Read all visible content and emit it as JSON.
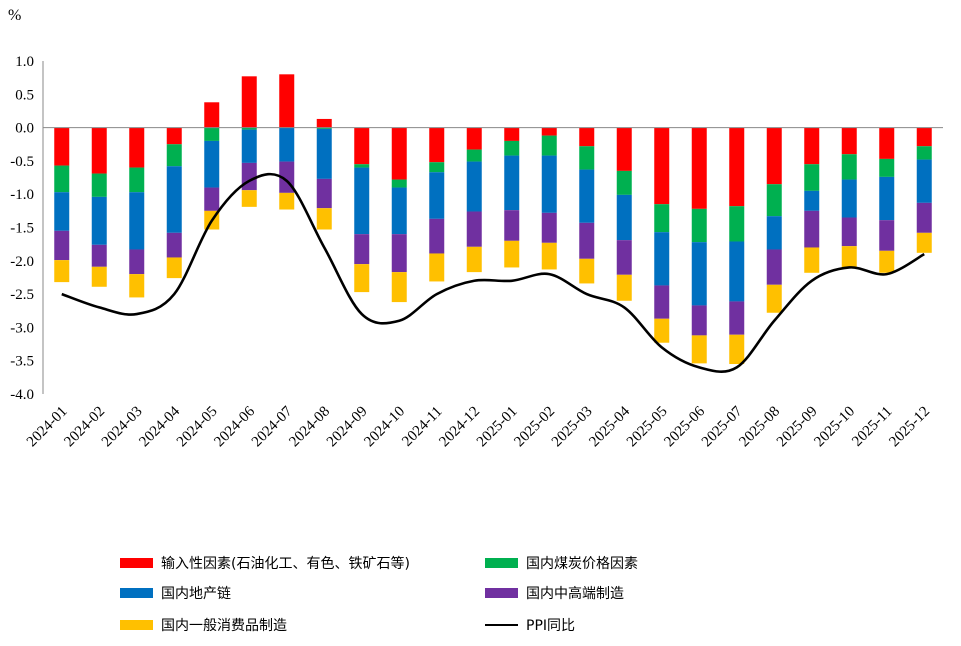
{
  "chart_data": {
    "type": "stacked-bar-line",
    "unit_label": "%",
    "ylim": [
      -4.0,
      1.0
    ],
    "yticks": [
      "1.0",
      "0.5",
      "0.0",
      "-0.5",
      "-1.0",
      "-1.5",
      "-2.0",
      "-2.5",
      "-3.0",
      "-3.5",
      "-4.0"
    ],
    "ytick_values": [
      1.0,
      0.5,
      0.0,
      -0.5,
      -1.0,
      -1.5,
      -2.0,
      -2.5,
      -3.0,
      -3.5,
      -4.0
    ],
    "categories": [
      "2024-01",
      "2024-02",
      "2024-03",
      "2024-04",
      "2024-05",
      "2024-06",
      "2024-07",
      "2024-08",
      "2024-09",
      "2024-10",
      "2024-11",
      "2024-12",
      "2025-01",
      "2025-02",
      "2025-03",
      "2025-04",
      "2025-05",
      "2025-06",
      "2025-07",
      "2025-08",
      "2025-09",
      "2025-10",
      "2025-11",
      "2025-12"
    ],
    "series": [
      {
        "name": "输入性因素(石油化工、有色、铁矿石等)",
        "color": "#FF0000",
        "values": [
          -0.57,
          -0.69,
          -0.6,
          -0.25,
          0.38,
          0.77,
          0.8,
          0.13,
          -0.55,
          -0.78,
          -0.52,
          -0.33,
          -0.2,
          -0.12,
          -0.28,
          -0.65,
          -1.15,
          -1.22,
          -1.18,
          -0.85,
          -0.55,
          -0.4,
          -0.47,
          -0.28
        ]
      },
      {
        "name": "国内煤炭价格因素",
        "color": "#00B050",
        "values": [
          -0.4,
          -0.35,
          -0.37,
          -0.33,
          -0.2,
          -0.03,
          0.0,
          -0.02,
          -0.05,
          -0.12,
          -0.15,
          -0.18,
          -0.22,
          -0.3,
          -0.35,
          -0.36,
          -0.42,
          -0.5,
          -0.53,
          -0.48,
          -0.4,
          -0.38,
          -0.27,
          -0.2
        ]
      },
      {
        "name": "国内地产链",
        "color": "#0070C0",
        "values": [
          -0.58,
          -0.72,
          -0.86,
          -1.0,
          -0.7,
          -0.5,
          -0.51,
          -0.75,
          -1.0,
          -0.7,
          -0.7,
          -0.75,
          -0.82,
          -0.86,
          -0.8,
          -0.68,
          -0.8,
          -0.95,
          -0.9,
          -0.5,
          -0.3,
          -0.57,
          -0.65,
          -0.65
        ]
      },
      {
        "name": "国内中高端制造",
        "color": "#7030A0",
        "values": [
          -0.44,
          -0.33,
          -0.37,
          -0.37,
          -0.35,
          -0.41,
          -0.47,
          -0.44,
          -0.45,
          -0.57,
          -0.52,
          -0.53,
          -0.46,
          -0.45,
          -0.54,
          -0.52,
          -0.5,
          -0.45,
          -0.5,
          -0.53,
          -0.55,
          -0.43,
          -0.46,
          -0.45
        ]
      },
      {
        "name": "国内一般消费品制造",
        "color": "#FFC000",
        "values": [
          -0.33,
          -0.3,
          -0.35,
          -0.31,
          -0.28,
          -0.25,
          -0.25,
          -0.32,
          -0.42,
          -0.45,
          -0.42,
          -0.38,
          -0.4,
          -0.4,
          -0.37,
          -0.39,
          -0.36,
          -0.42,
          -0.44,
          -0.42,
          -0.38,
          -0.32,
          -0.33,
          -0.3
        ]
      }
    ],
    "line": {
      "name": "PPI同比",
      "color": "#000000",
      "values": [
        -2.5,
        -2.7,
        -2.8,
        -2.5,
        -1.4,
        -0.8,
        -0.8,
        -1.8,
        -2.8,
        -2.9,
        -2.5,
        -2.3,
        -2.3,
        -2.2,
        -2.5,
        -2.7,
        -3.3,
        -3.6,
        -3.6,
        -2.9,
        -2.3,
        -2.1,
        -2.2,
        -1.9
      ]
    }
  },
  "legend": {
    "items": [
      {
        "label": "输入性因素(石油化工、有色、铁矿石等)",
        "color": "#FF0000",
        "kind": "box"
      },
      {
        "label": "国内煤炭价格因素",
        "color": "#00B050",
        "kind": "box"
      },
      {
        "label": "国内地产链",
        "color": "#0070C0",
        "kind": "box"
      },
      {
        "label": "国内中高端制造",
        "color": "#7030A0",
        "kind": "box"
      },
      {
        "label": "国内一般消费品制造",
        "color": "#FFC000",
        "kind": "box"
      },
      {
        "label": "PPI同比",
        "color": "#000000",
        "kind": "line"
      }
    ]
  }
}
